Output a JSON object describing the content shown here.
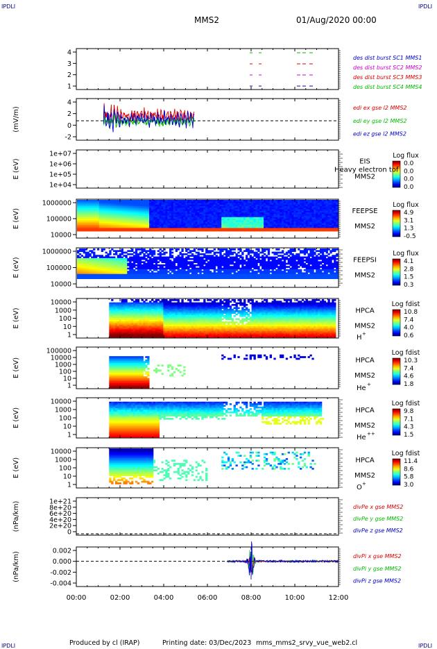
{
  "page": {
    "corner_label": "IPDLI",
    "spacecraft": "MMS2",
    "date_label": "01/Aug/2020 00:00",
    "footer": {
      "produced": "Produced by cl (IRAP)",
      "printing": "Printing date: 03/Dec/2023",
      "script": "mms_mms2_srvy_vue_web2.cl"
    }
  },
  "chart_data": {
    "type": "multi-panel time series",
    "x_range_hours": [
      0,
      12
    ],
    "x_ticks": [
      "00:00",
      "02:00",
      "04:00",
      "06:00",
      "08:00",
      "10:00",
      "12:00"
    ],
    "panels": [
      {
        "id": "burst",
        "type": "line",
        "ylim": [
          0.5,
          4.5
        ],
        "yticks": [
          "4",
          "3",
          "2",
          "1"
        ],
        "legend": [
          {
            "label": "des dist burst SC1 MMS1",
            "color": "#0000cc"
          },
          {
            "label": "des dist burst SC2 MMS2",
            "color": "#cc00cc"
          },
          {
            "label": "des dist burst SC3 MMS3",
            "color": "#dd0000"
          },
          {
            "label": "des dist burst SC4 MMS4",
            "color": "#00bb00"
          }
        ]
      },
      {
        "id": "edi",
        "type": "line",
        "ylabel": "(mV/m)",
        "ylim": [
          -4,
          6
        ],
        "yticks": [
          "4",
          "2",
          "0",
          "-2"
        ],
        "legend": [
          {
            "label": "edi ex gse l2 MMS2",
            "color": "#dd0000"
          },
          {
            "label": "edi ey gse l2 MMS2",
            "color": "#00bb00"
          },
          {
            "label": "edi ez gse l2 MMS2",
            "color": "#0000cc"
          }
        ]
      },
      {
        "id": "eis",
        "type": "heatmap",
        "ylabel": "E (eV)",
        "yticks": [
          "1e+07",
          "1e+06",
          "1e+05",
          "1e+04"
        ],
        "instrument": [
          "EIS",
          "MMS2"
        ],
        "overlay_text": "Heavy electron tof",
        "colorbar": {
          "title": "Log flux",
          "ticks": [
            "0.0",
            "0.0",
            "0.0",
            "0.0"
          ]
        }
      },
      {
        "id": "feepse",
        "type": "heatmap",
        "ylabel": "E (eV)",
        "yticks": [
          "1000000",
          "100000",
          "10000"
        ],
        "instrument": [
          "FEEPSE",
          "MMS2"
        ],
        "colorbar": {
          "title": "Log flux",
          "ticks": [
            "4.9",
            "3.1",
            "1.3",
            "-0.5"
          ]
        }
      },
      {
        "id": "feepsi",
        "type": "heatmap",
        "ylabel": "E (eV)",
        "yticks": [
          "1000000",
          "100000",
          "10000"
        ],
        "instrument": [
          "FEEPSI",
          "MMS2"
        ],
        "colorbar": {
          "title": "Log flux",
          "ticks": [
            "4.1",
            "2.8",
            "1.5",
            "0.3"
          ]
        }
      },
      {
        "id": "hpca_h",
        "type": "heatmap",
        "ylabel": "E (eV)",
        "yticks": [
          "10000",
          "1000",
          "100",
          "10",
          "1"
        ],
        "instrument": [
          "HPCA",
          "MMS2",
          "H",
          "+"
        ],
        "colorbar": {
          "title": "Log fdist",
          "ticks": [
            "10.8",
            "7.4",
            "4.0",
            "0.6"
          ]
        }
      },
      {
        "id": "hpca_he",
        "type": "heatmap",
        "ylabel": "E (eV)",
        "yticks": [
          "100000",
          "10000",
          "1000",
          "100",
          "10",
          "1"
        ],
        "instrument": [
          "HPCA",
          "MMS2",
          "He",
          "+"
        ],
        "colorbar": {
          "title": "Log fdist",
          "ticks": [
            "10.3",
            "7.4",
            "4.6",
            "1.8"
          ]
        }
      },
      {
        "id": "hpca_hepp",
        "type": "heatmap",
        "ylabel": "E (eV)",
        "yticks": [
          "10000",
          "1000",
          "100",
          "10",
          "1"
        ],
        "instrument": [
          "HPCA",
          "MMS2",
          "He",
          "++"
        ],
        "colorbar": {
          "title": "Log fdist",
          "ticks": [
            "9.8",
            "7.1",
            "4.3",
            "1.5"
          ]
        }
      },
      {
        "id": "hpca_o",
        "type": "heatmap",
        "ylabel": "E (eV)",
        "yticks": [
          "10000",
          "1000",
          "100",
          "10",
          "1"
        ],
        "instrument": [
          "HPCA",
          "MMS2",
          "O",
          "+"
        ],
        "colorbar": {
          "title": "Log fdist",
          "ticks": [
            "11.4",
            "8.6",
            "5.8",
            "3.0"
          ]
        }
      },
      {
        "id": "divpe",
        "type": "line",
        "ylabel": "(nPa/km)",
        "yticks": [
          "1e+21",
          "8e+20",
          "6e+20",
          "4e+20",
          "2e+20",
          "0"
        ],
        "legend": [
          {
            "label": "divPe x gse MMS2",
            "color": "#dd0000"
          },
          {
            "label": "divPe y gse MMS2",
            "color": "#00bb00"
          },
          {
            "label": "divPe z gse MMS2",
            "color": "#0000cc"
          }
        ]
      },
      {
        "id": "divpi",
        "type": "line",
        "ylabel": "(nPa/km)",
        "yticks": [
          "0.002",
          "0.000",
          "-0.002",
          "-0.004"
        ],
        "legend": [
          {
            "label": "divPi x gse MMS2",
            "color": "#dd0000"
          },
          {
            "label": "divPi y gse MMS2",
            "color": "#00bb00"
          },
          {
            "label": "divPi z gse MMS2",
            "color": "#0000cc"
          }
        ]
      }
    ]
  }
}
